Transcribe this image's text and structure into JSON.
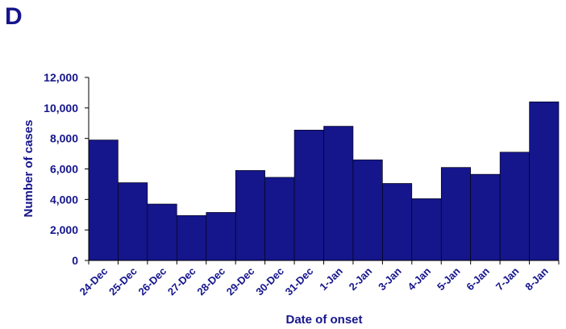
{
  "panel_label": "D",
  "colors": {
    "bar": "#15158C",
    "text": "#15158C",
    "axis": "#000000"
  },
  "chart_data": {
    "type": "bar",
    "categories": [
      "24-Dec",
      "25-Dec",
      "26-Dec",
      "27-Dec",
      "28-Dec",
      "29-Dec",
      "30-Dec",
      "31-Dec",
      "1-Jan",
      "2-Jan",
      "3-Jan",
      "4-Jan",
      "5-Jan",
      "6-Jan",
      "7-Jan",
      "8-Jan"
    ],
    "values": [
      7900,
      5100,
      3700,
      2950,
      3150,
      5900,
      5450,
      8550,
      8800,
      6600,
      5050,
      4050,
      6100,
      5650,
      7100,
      10400
    ],
    "title": "",
    "xlabel": "Date of onset",
    "ylabel": "Number of cases",
    "ylim": [
      0,
      12000
    ],
    "yticks": [
      0,
      2000,
      4000,
      6000,
      8000,
      10000,
      12000
    ],
    "ytick_labels": [
      "0",
      "2,000",
      "4,000",
      "6,000",
      "8,000",
      "10,000",
      "12,000"
    ],
    "grid": false,
    "legend": "none"
  }
}
